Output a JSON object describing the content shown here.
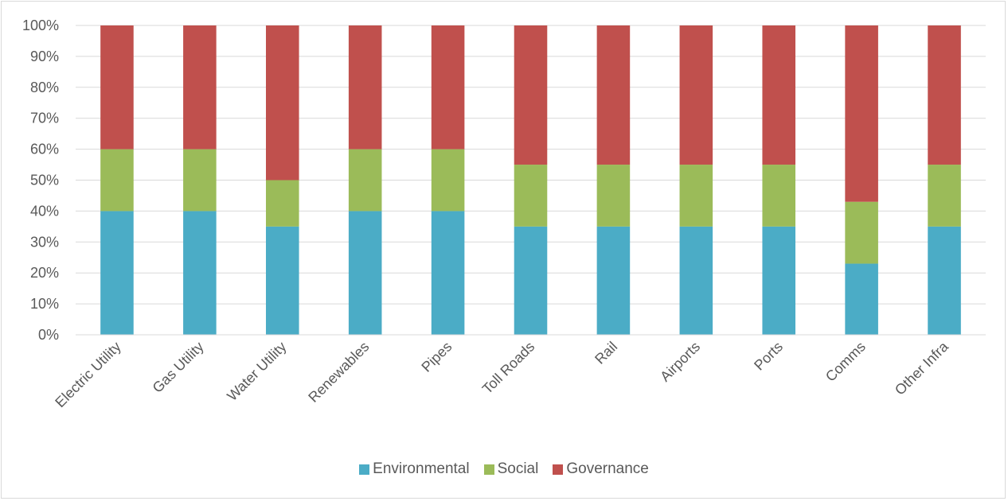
{
  "chart_data": {
    "type": "bar",
    "stacked": "percent",
    "categories": [
      "Electric Utility",
      "Gas Utility",
      "Water Utility",
      "Renewables",
      "Pipes",
      "Toll Roads",
      "Rail",
      "Airports",
      "Ports",
      "Comms",
      "Other Infra"
    ],
    "series": [
      {
        "name": "Environmental",
        "color": "#4bacc6",
        "values": [
          40,
          40,
          35,
          40,
          40,
          35,
          35,
          35,
          35,
          23,
          35
        ]
      },
      {
        "name": "Social",
        "color": "#9bbb59",
        "values": [
          20,
          20,
          15,
          20,
          20,
          20,
          20,
          20,
          20,
          20,
          20
        ]
      },
      {
        "name": "Governance",
        "color": "#c0504d",
        "values": [
          40,
          40,
          50,
          40,
          40,
          45,
          45,
          45,
          45,
          57,
          45
        ]
      }
    ],
    "yticks": [
      "0%",
      "10%",
      "20%",
      "30%",
      "40%",
      "50%",
      "60%",
      "70%",
      "80%",
      "90%",
      "100%"
    ],
    "ylim": [
      0,
      100
    ],
    "grid": true,
    "legend_position": "bottom"
  }
}
